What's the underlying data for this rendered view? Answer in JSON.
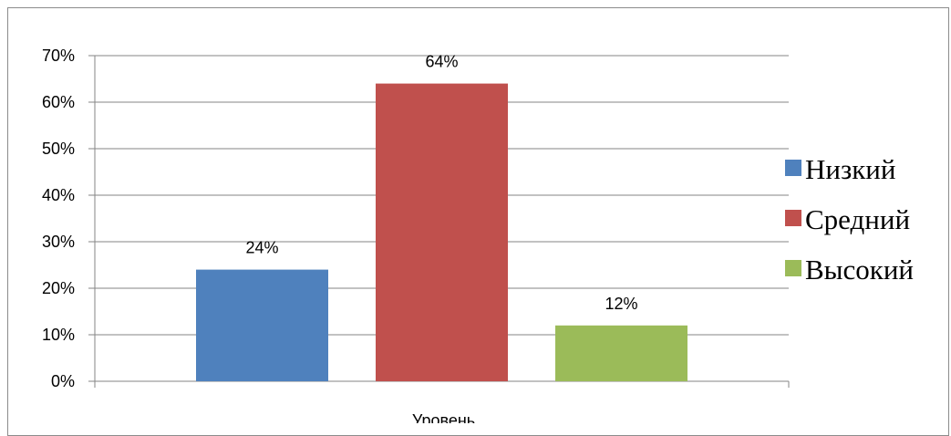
{
  "chart_data": {
    "type": "bar",
    "title": "",
    "xlabel": "Уровень",
    "ylabel": "",
    "categories": [
      "Уровень"
    ],
    "ylim": [
      0,
      0.7
    ],
    "y_ticks": [
      "0%",
      "10%",
      "20%",
      "30%",
      "40%",
      "50%",
      "60%",
      "70%"
    ],
    "y_tick_values": [
      0,
      0.1,
      0.2,
      0.3,
      0.4,
      0.5,
      0.6,
      0.7
    ],
    "grid": true,
    "legend_position": "right",
    "series": [
      {
        "name": "Низкий",
        "values": [
          0.24
        ],
        "label": "24%",
        "color": "#4f81bd"
      },
      {
        "name": "Средний",
        "values": [
          0.64
        ],
        "label": "64%",
        "color": "#c0504d"
      },
      {
        "name": "Высокий",
        "values": [
          0.12
        ],
        "label": "12%",
        "color": "#9bbb59"
      }
    ]
  }
}
